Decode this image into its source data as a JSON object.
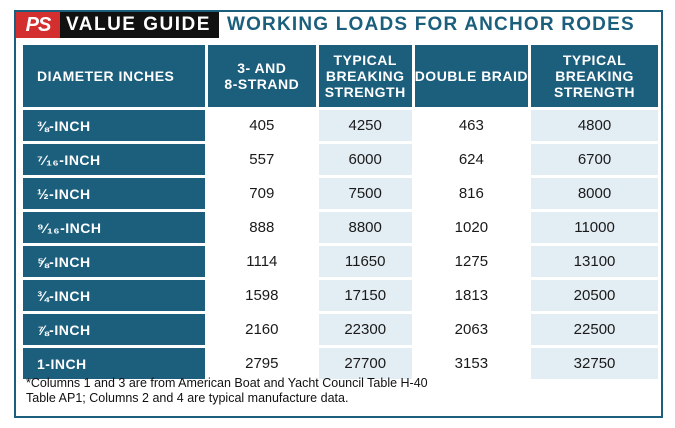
{
  "header": {
    "logo": "PS",
    "badge": "VALUE GUIDE",
    "title": "WORKING LOADS FOR ANCHOR RODES"
  },
  "table": {
    "columns": [
      [
        "DIAMETER INCHES"
      ],
      [
        "3- AND",
        "8-STRAND"
      ],
      [
        "TYPICAL",
        "BREAKING",
        "STRENGTH"
      ],
      [
        "DOUBLE BRAID"
      ],
      [
        "TYPICAL",
        "BREAKING",
        "STRENGTH"
      ]
    ],
    "rows": [
      {
        "diameter": "⅜-INCH",
        "strand": "405",
        "strand_breaking": "4250",
        "double_braid": "463",
        "braid_breaking": "4800"
      },
      {
        "diameter": "⁷⁄₁₆-INCH",
        "strand": "557",
        "strand_breaking": "6000",
        "double_braid": "624",
        "braid_breaking": "6700"
      },
      {
        "diameter": "½-INCH",
        "strand": "709",
        "strand_breaking": "7500",
        "double_braid": "816",
        "braid_breaking": "8000"
      },
      {
        "diameter": "⁹⁄₁₆-INCH",
        "strand": "888",
        "strand_breaking": "8800",
        "double_braid": "1020",
        "braid_breaking": "11000"
      },
      {
        "diameter": "⅝-INCH",
        "strand": "1114",
        "strand_breaking": "11650",
        "double_braid": "1275",
        "braid_breaking": "13100"
      },
      {
        "diameter": "¾-INCH",
        "strand": "1598",
        "strand_breaking": "17150",
        "double_braid": "1813",
        "braid_breaking": "20500"
      },
      {
        "diameter": "⅞-INCH",
        "strand": "2160",
        "strand_breaking": "22300",
        "double_braid": "2063",
        "braid_breaking": "22500"
      },
      {
        "diameter": "1-INCH",
        "strand": "2795",
        "strand_breaking": "27700",
        "double_braid": "3153",
        "braid_breaking": "32750"
      }
    ]
  },
  "footnote": {
    "line1": "*Columns 1 and 3 are from American Boat and Yacht Council Table H-40",
    "line2": "Table AP1; Columns 2 and 4 are typical manufacture data."
  },
  "colors": {
    "header_blue": "#1b5f7d",
    "logo_red": "#d32f2f",
    "shaded_cell": "#e3edf4"
  }
}
